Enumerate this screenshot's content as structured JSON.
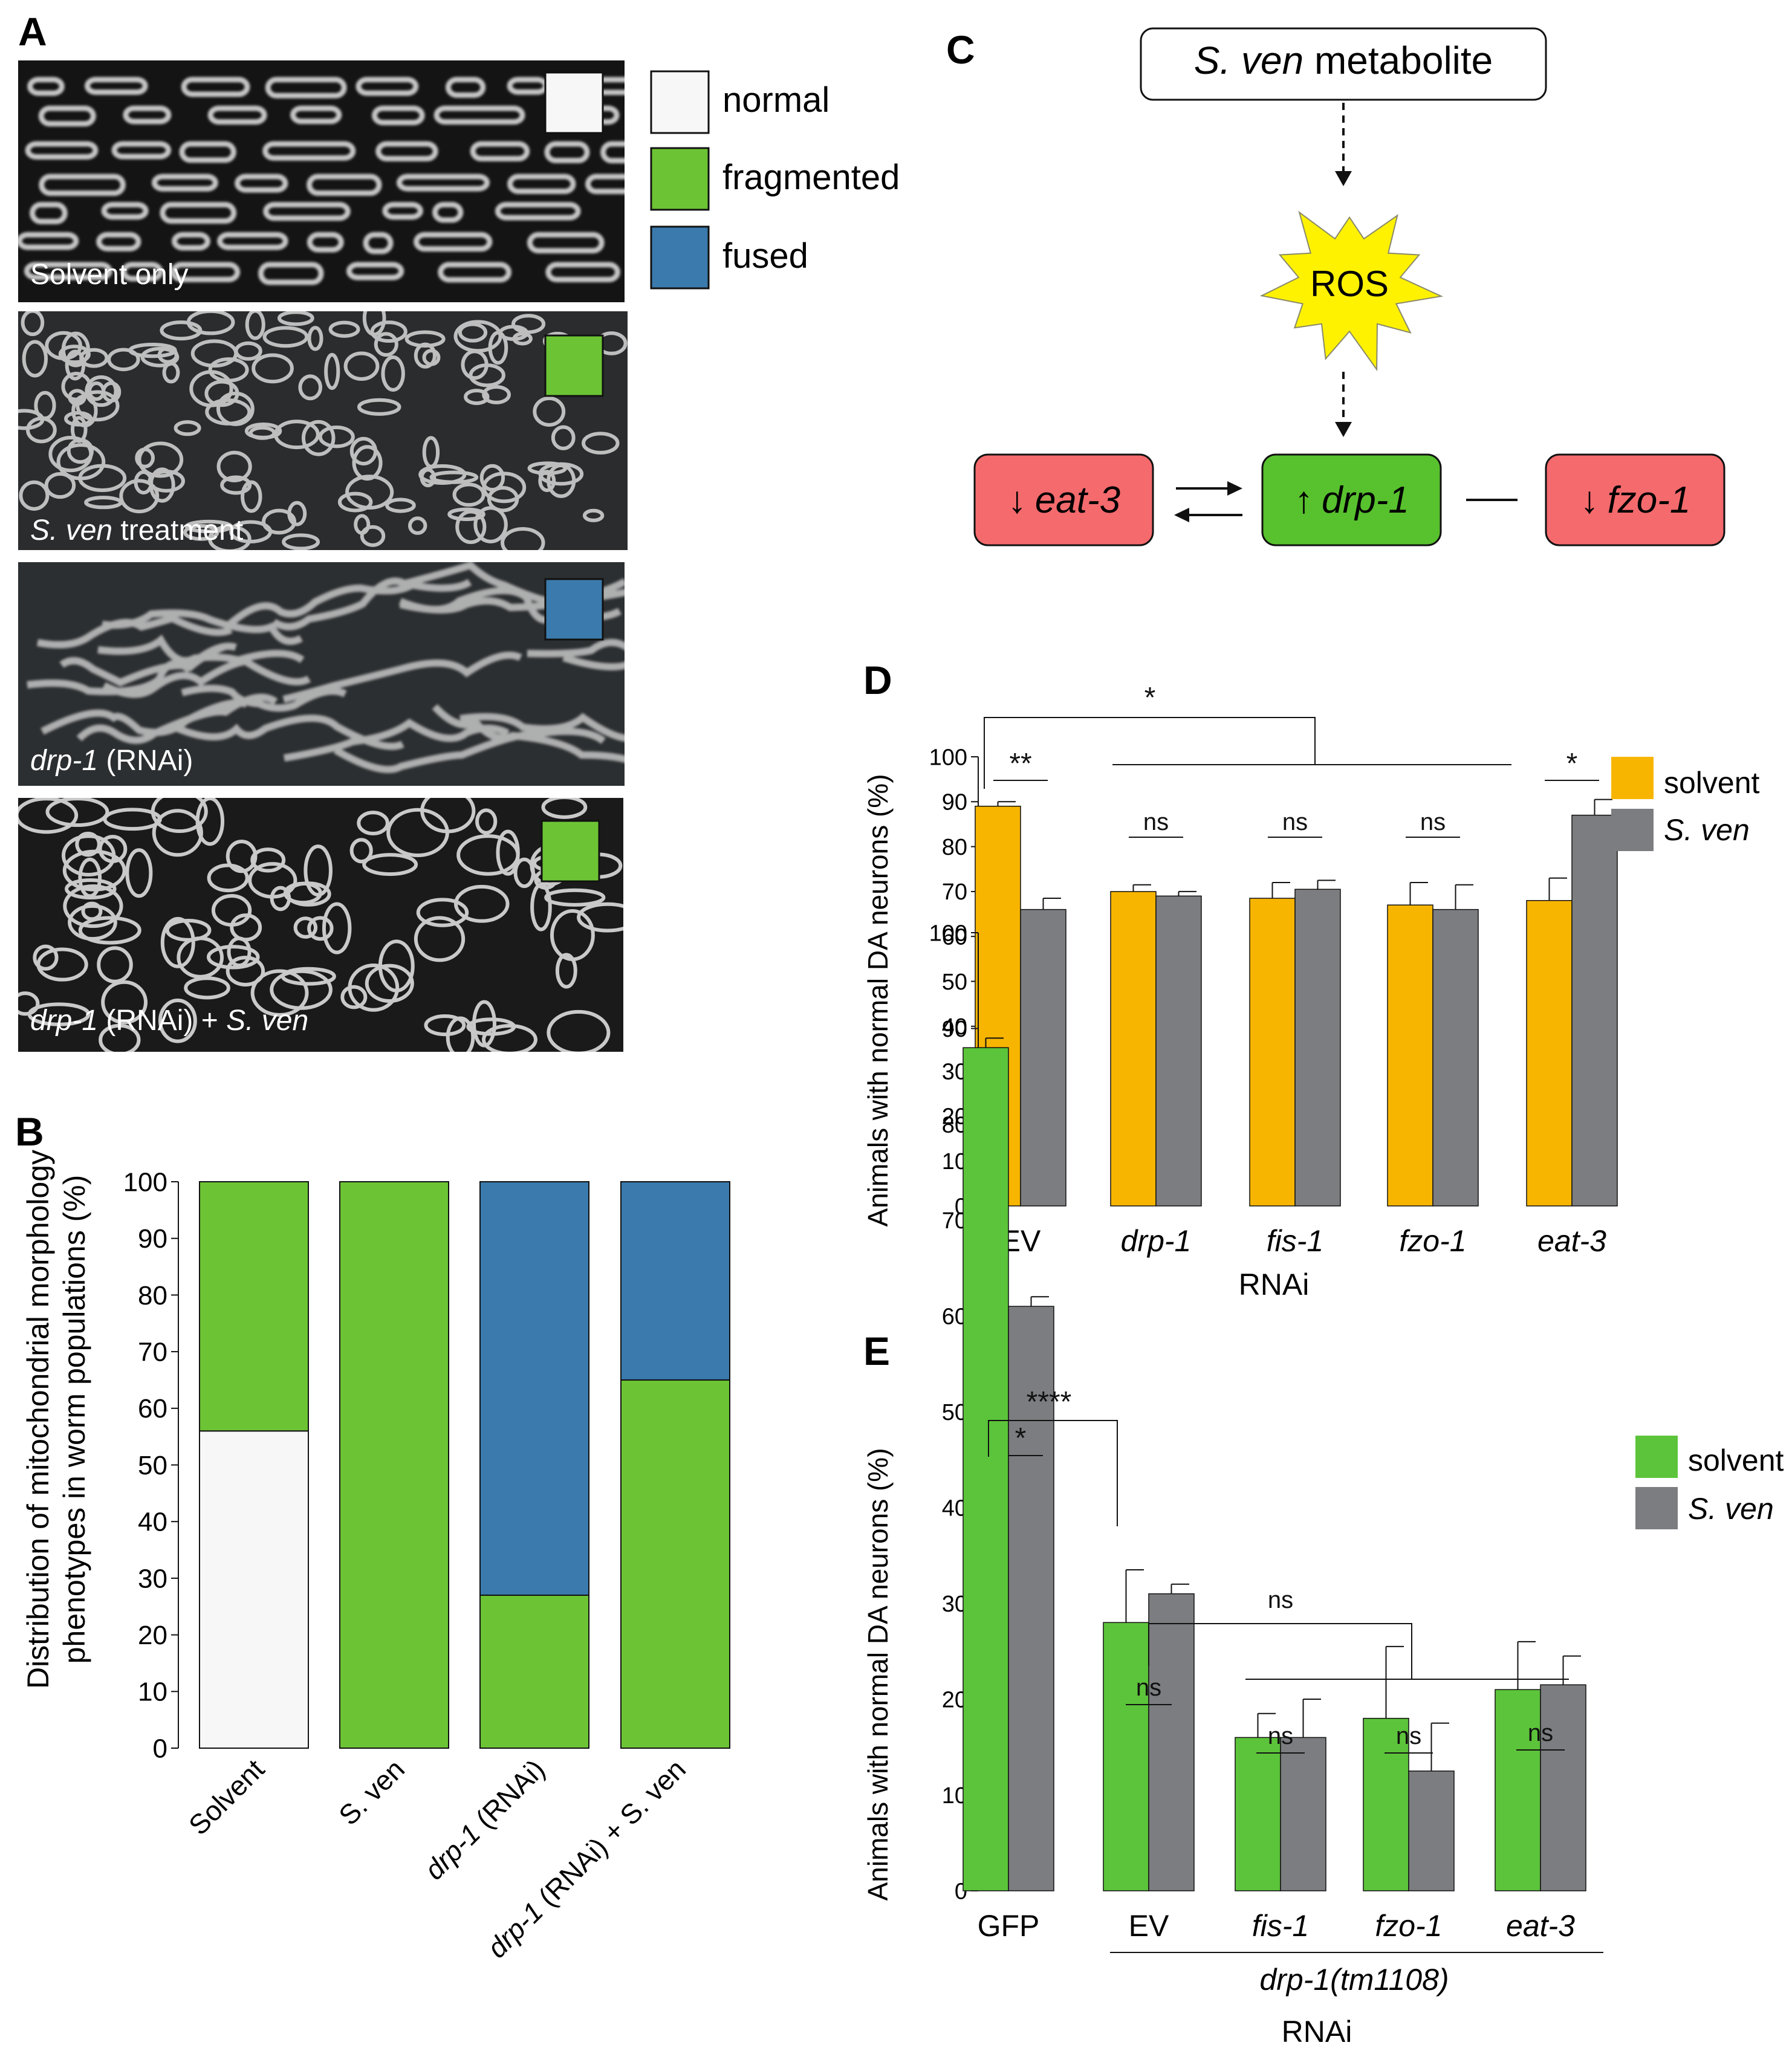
{
  "panel_letters": {
    "a": "A",
    "b": "B",
    "c": "C",
    "d": "D",
    "e": "E"
  },
  "colors": {
    "normal": "#f7f7f7",
    "fragmented": "#6cc434",
    "fused": "#3b7aac",
    "solvent_d": "#f7b500",
    "sven": "#7b7d80",
    "solvent_e": "#5cc43a",
    "eat3_box": "#f46a6d",
    "drp1_box": "#58c12e",
    "ros": "#fff200"
  },
  "panel_a": {
    "images": [
      {
        "label_plain": "Solvent only",
        "label_italic": "",
        "label_rest": "",
        "swatch": "normal"
      },
      {
        "label_plain": "",
        "label_italic": "S. ven",
        "label_rest": " treatment",
        "swatch": "fragmented"
      },
      {
        "label_plain": "",
        "label_italic": "drp-1",
        "label_rest": " (RNAi)",
        "swatch": "fused"
      },
      {
        "label_plain": "",
        "label_italic": "drp-1",
        "label_rest": " (RNAi) + ",
        "label_italic2": "S. ven",
        "swatch": "fragmented"
      }
    ],
    "legend": [
      "normal",
      "fragmented",
      "fused"
    ]
  },
  "panel_c": {
    "metabolite_italic": "S. ven",
    "metabolite_rest": " metabolite",
    "ros": "ROS",
    "eat3_arrow": "↓",
    "eat3": "eat-3",
    "drp1_arrow": "↑",
    "drp1": "drp-1",
    "fzo1_arrow": "↓",
    "fzo1": "fzo-1"
  },
  "chart_data": [
    {
      "panel": "B",
      "type": "bar",
      "stacked": true,
      "ylabel_line1": "Distribution of mitochondrial morphology",
      "ylabel_line2": "phenotypes in worm populations (%)",
      "ylim": [
        0,
        100
      ],
      "yticks": [
        "0",
        "10",
        "20",
        "30",
        "40",
        "50",
        "60",
        "70",
        "80",
        "90",
        "100"
      ],
      "categories": [
        {
          "italic": "",
          "rest": "Solvent"
        },
        {
          "italic": "",
          "rest": "S. ven"
        },
        {
          "italic": "drp-1",
          "rest": " (RNAi)"
        },
        {
          "italic": "drp-1",
          "rest": " (RNAi) + S. ven"
        }
      ],
      "series": [
        {
          "name": "normal",
          "values": [
            56,
            0,
            0,
            0
          ]
        },
        {
          "name": "fragmented",
          "values": [
            44,
            100,
            27,
            65
          ]
        },
        {
          "name": "fused",
          "values": [
            0,
            0,
            73,
            35
          ]
        }
      ]
    },
    {
      "panel": "D",
      "type": "bar",
      "ylabel": "Animals with normal DA neurons (%)",
      "xlabel": "RNAi",
      "ylim": [
        0,
        100
      ],
      "yticks": [
        "0",
        "10",
        "20",
        "30",
        "40",
        "50",
        "60",
        "70",
        "80",
        "90",
        "100"
      ],
      "categories": [
        "EV",
        "drp-1",
        "fis-1",
        "fzo-1",
        "eat-3"
      ],
      "series": [
        {
          "name": "solvent",
          "values": [
            89,
            70,
            68.5,
            67,
            68
          ],
          "errors": [
            1,
            1.5,
            3.5,
            5,
            5
          ]
        },
        {
          "name": "S. ven",
          "values": [
            66,
            69,
            70.5,
            66,
            87
          ],
          "errors": [
            2.5,
            1,
            2,
            5.5,
            3.5
          ]
        }
      ],
      "annotations": [
        "**",
        "ns",
        "ns",
        "ns",
        "*",
        "*"
      ]
    },
    {
      "panel": "E",
      "type": "bar",
      "ylabel": "Animals with normal DA neurons (%)",
      "xlabel": "RNAi",
      "group_label": "drp-1(tm1108)",
      "ylim": [
        0,
        100
      ],
      "yticks": [
        "0",
        "10",
        "20",
        "30",
        "40",
        "50",
        "60",
        "70",
        "80",
        "90",
        "100"
      ],
      "categories": [
        "GFP",
        "EV",
        "fis-1",
        "fzo-1",
        "eat-3"
      ],
      "series": [
        {
          "name": "solvent",
          "values": [
            88,
            28,
            16,
            18,
            21
          ],
          "errors": [
            1,
            5.5,
            2.5,
            7.5,
            5
          ]
        },
        {
          "name": "S. ven",
          "values": [
            61,
            31,
            16,
            12.5,
            21.5
          ],
          "errors": [
            1,
            1,
            4,
            5,
            3
          ]
        }
      ],
      "annotations": [
        "*",
        "****",
        "ns",
        "ns",
        "ns",
        "ns",
        "ns"
      ]
    }
  ]
}
